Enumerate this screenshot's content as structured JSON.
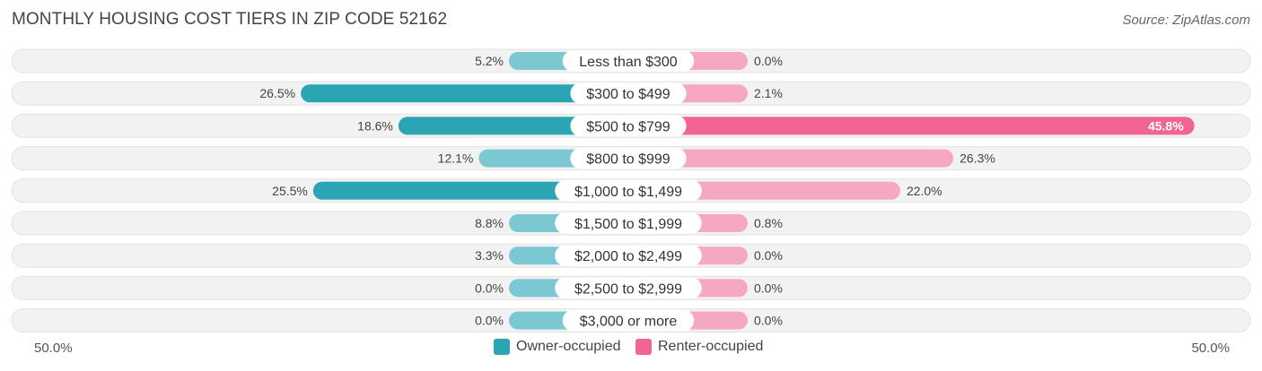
{
  "title": "MONTHLY HOUSING COST TIERS IN ZIP CODE 52162",
  "source": "Source: ZipAtlas.com",
  "chart_data": {
    "type": "bar",
    "orientation": "horizontal-diverging",
    "categories": [
      "Less than $300",
      "$300 to $499",
      "$500 to $799",
      "$800 to $999",
      "$1,000 to $1,499",
      "$1,500 to $1,999",
      "$2,000 to $2,499",
      "$2,500 to $2,999",
      "$3,000 or more"
    ],
    "series": [
      {
        "name": "Owner-occupied",
        "values": [
          5.2,
          26.5,
          18.6,
          12.1,
          25.5,
          8.8,
          3.3,
          0.0,
          0.0
        ],
        "labels": [
          "5.2%",
          "26.5%",
          "18.6%",
          "12.1%",
          "25.5%",
          "8.8%",
          "3.3%",
          "0.0%",
          "0.0%"
        ]
      },
      {
        "name": "Renter-occupied",
        "values": [
          0.0,
          2.1,
          45.8,
          26.3,
          22.0,
          0.8,
          0.0,
          0.0,
          0.0
        ],
        "labels": [
          "0.0%",
          "2.1%",
          "45.8%",
          "26.3%",
          "22.0%",
          "0.8%",
          "0.0%",
          "0.0%",
          "0.0%"
        ]
      }
    ],
    "axis_left_label": "50.0%",
    "axis_right_label": "50.0%",
    "xlim": [
      -50,
      50
    ],
    "legend_position": "bottom-center",
    "colors": {
      "owner_light": "#7cc8d2",
      "owner_dark": "#2ba5b4",
      "renter_light": "#f7a8c1",
      "renter_dark": "#f06592",
      "row_bg": "#efefef"
    }
  },
  "legend": {
    "owner": "Owner-occupied",
    "renter": "Renter-occupied"
  }
}
